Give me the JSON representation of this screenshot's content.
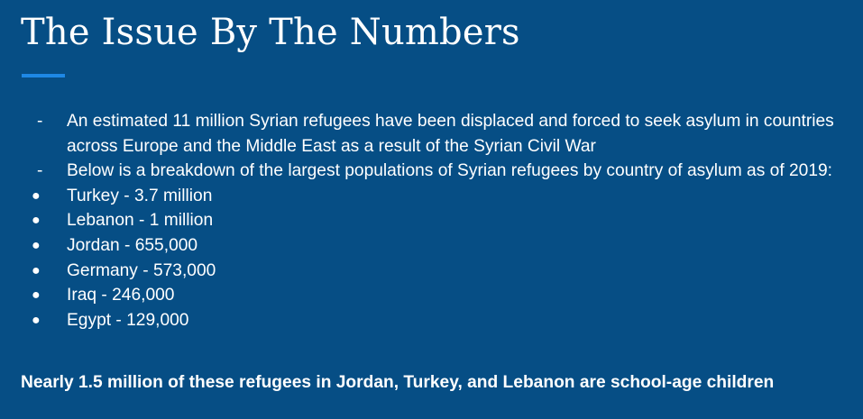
{
  "slide": {
    "title": "The Issue By The Numbers",
    "dash_marker": "-",
    "bullet_marker": "●",
    "intro_points": [
      "An estimated 11 million Syrian refugees have been displaced and forced to seek asylum in countries across Europe and the Middle East as a result of the Syrian Civil War",
      "Below is a breakdown of the largest populations of Syrian refugees by country of asylum as of 2019:"
    ],
    "countries": [
      "Turkey - 3.7 million",
      "Lebanon - 1 million",
      "Jordan - 655,000",
      "Germany - 573,000",
      "Iraq - 246,000",
      "Egypt - 129,000"
    ],
    "footer": "Nearly 1.5 million of these refugees in Jordan, Turkey, and Lebanon are school-age children",
    "colors": {
      "background": "#064e85",
      "accent_bar": "#1e88e5",
      "text": "#ffffff"
    }
  }
}
